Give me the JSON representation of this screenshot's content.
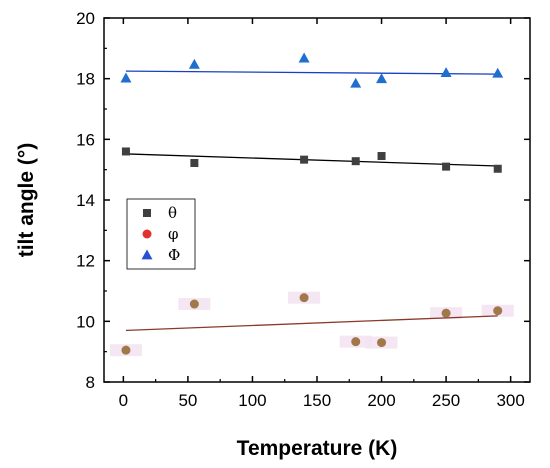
{
  "chart_data": {
    "type": "scatter",
    "xlabel": "Temperature (K)",
    "ylabel": "tilt angle (°)",
    "xlim": [
      -15,
      315
    ],
    "ylim": [
      8,
      20
    ],
    "xticks": [
      0,
      50,
      100,
      150,
      200,
      250,
      300
    ],
    "yticks": [
      8,
      10,
      12,
      14,
      16,
      18,
      20
    ],
    "legend_position": "left",
    "grid": false,
    "series": [
      {
        "name": "θ",
        "marker": "square",
        "color": "#404040",
        "x": [
          2,
          55,
          140,
          180,
          200,
          250,
          290
        ],
        "y": [
          15.6,
          15.22,
          15.33,
          15.28,
          15.45,
          15.1,
          15.03
        ],
        "fit": {
          "x": [
            2,
            290
          ],
          "y": [
            15.52,
            15.12
          ],
          "color": "#000000"
        }
      },
      {
        "name": "φ",
        "marker": "circle",
        "color": "#a0784a",
        "legend_color": "#e03030",
        "x": [
          2,
          55,
          140,
          180,
          200,
          250,
          290
        ],
        "y": [
          9.05,
          10.57,
          10.78,
          9.33,
          9.3,
          10.27,
          10.35
        ],
        "fit": {
          "x": [
            2,
            290
          ],
          "y": [
            9.7,
            10.18
          ],
          "color": "#8b3a2a"
        }
      },
      {
        "name": "Φ",
        "marker": "triangle",
        "color": "#1e6fd0",
        "legend_color": "#2a4fd0",
        "x": [
          2,
          55,
          140,
          180,
          200,
          250,
          290
        ],
        "y": [
          18.02,
          18.47,
          18.68,
          17.85,
          18.0,
          18.2,
          18.18
        ],
        "fit": {
          "x": [
            2,
            290
          ],
          "y": [
            18.25,
            18.15
          ],
          "color": "#1a3fbf"
        }
      }
    ]
  }
}
